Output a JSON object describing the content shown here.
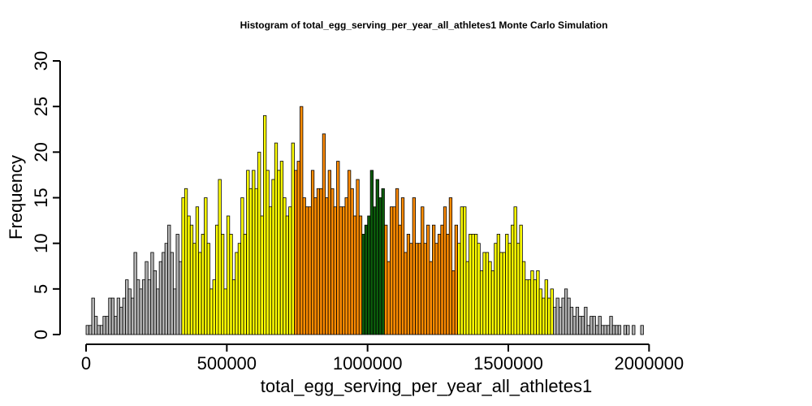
{
  "chart_data": {
    "type": "bar",
    "title": "Histogram of  total_egg_serving_per_year_all_athletes1  Monte Carlo Simulation",
    "xlabel": "total_egg_serving_per_year_all_athletes1",
    "ylabel": "Frequency",
    "xlim": [
      0,
      2400000
    ],
    "ylim": [
      0,
      30
    ],
    "x_ticks": [
      0,
      500000,
      1000000,
      1500000,
      2000000
    ],
    "x_tick_labels": [
      "0",
      "500000",
      "1000000",
      "1500000",
      "2000000"
    ],
    "y_ticks": [
      0,
      5,
      10,
      15,
      20,
      25,
      30
    ],
    "y_tick_labels": [
      "0",
      "5",
      "10",
      "15",
      "20",
      "25",
      "30"
    ],
    "bin_width": 10000,
    "colors": {
      "gray": "#b3b3b3",
      "yellow": "#ffff00",
      "orange": "#ff8c00",
      "green": "#0b5c0b"
    },
    "segments": [
      {
        "color": "gray",
        "from": 0,
        "to": 340000
      },
      {
        "color": "yellow",
        "from": 340000,
        "to": 740000
      },
      {
        "color": "orange",
        "from": 740000,
        "to": 980000
      },
      {
        "color": "green",
        "from": 980000,
        "to": 1060000
      },
      {
        "color": "orange",
        "from": 1060000,
        "to": 1320000
      },
      {
        "color": "yellow",
        "from": 1320000,
        "to": 1660000
      },
      {
        "color": "gray",
        "from": 1660000,
        "to": 2400000
      }
    ],
    "bins_start": 0,
    "counts": [
      1,
      1,
      4,
      2,
      1,
      1,
      2,
      2,
      4,
      4,
      2,
      4,
      3,
      4,
      6,
      5,
      4,
      9,
      6,
      5,
      6,
      8,
      6,
      9,
      7,
      5,
      8,
      9,
      10,
      12,
      9,
      5,
      11,
      8,
      15,
      16,
      13,
      12,
      10,
      14,
      9,
      11,
      15,
      10,
      5,
      6,
      12,
      17,
      11,
      5,
      13,
      11,
      6,
      9,
      10,
      15,
      11,
      18,
      16,
      18,
      16,
      20,
      13,
      24,
      18,
      14,
      17,
      21,
      18,
      19,
      15,
      13,
      14,
      21,
      18,
      19,
      25,
      15,
      14,
      14,
      18,
      15,
      16,
      16,
      22,
      15,
      18,
      16,
      14,
      19,
      14,
      14,
      15,
      18,
      16,
      13,
      17,
      13,
      11,
      12,
      13,
      18,
      14,
      17,
      15,
      16,
      12,
      8,
      14,
      14,
      16,
      12,
      15,
      9,
      11,
      10,
      15,
      10,
      10,
      14,
      10,
      12,
      8,
      12,
      10,
      11,
      12,
      14,
      11,
      15,
      7,
      12,
      10,
      14,
      14,
      8,
      11,
      11,
      11,
      10,
      7,
      9,
      9,
      8,
      7,
      10,
      11,
      9,
      9,
      11,
      10,
      12,
      14,
      10,
      12,
      8,
      6,
      6,
      7,
      6,
      7,
      5,
      4,
      6,
      4,
      5,
      3,
      4,
      3,
      4,
      5,
      4,
      3,
      2,
      3,
      2,
      2,
      3,
      1,
      2,
      2,
      1,
      2,
      1,
      1,
      1,
      2,
      1,
      1,
      1,
      0,
      1,
      1,
      0,
      1,
      0,
      0,
      1,
      0,
      0
    ]
  }
}
